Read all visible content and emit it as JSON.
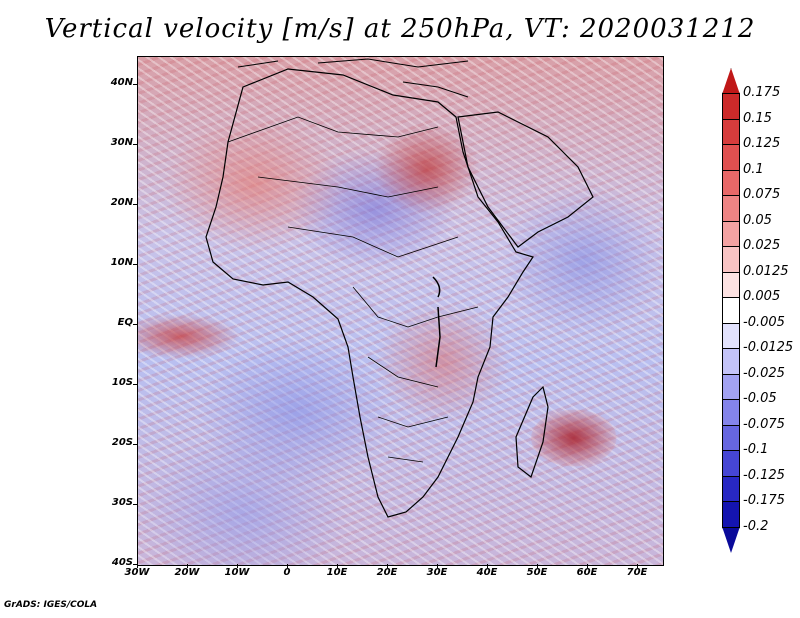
{
  "title": "Vertical velocity [m/s] at 250hPa, VT: 2020031212",
  "footer": "GrADS: IGES/COLA",
  "map": {
    "lat_labels": [
      "40N",
      "30N",
      "20N",
      "10N",
      "EQ",
      "10S",
      "20S",
      "30S",
      "40S"
    ],
    "lon_labels": [
      "30W",
      "20W",
      "10W",
      "0",
      "10E",
      "20E",
      "30E",
      "40E",
      "50E",
      "60E",
      "70E"
    ]
  },
  "colorbar": {
    "labels": [
      "0.175",
      "0.15",
      "0.125",
      "0.1",
      "0.075",
      "0.05",
      "0.025",
      "0.0125",
      "0.005",
      "-0.005",
      "-0.0125",
      "-0.025",
      "-0.05",
      "-0.075",
      "-0.1",
      "-0.125",
      "-0.175",
      "-0.2"
    ],
    "colors": [
      "#c01818",
      "#cc2a2a",
      "#d63c3c",
      "#e05050",
      "#e86868",
      "#ee8484",
      "#f4a2a2",
      "#f9c4c4",
      "#fde2e2",
      "#ffffff",
      "#e2e2fd",
      "#c4c4f9",
      "#a2a2f2",
      "#8484ea",
      "#6666e0",
      "#4646d4",
      "#2828c4",
      "#1414b0",
      "#0a0a9a"
    ]
  }
}
